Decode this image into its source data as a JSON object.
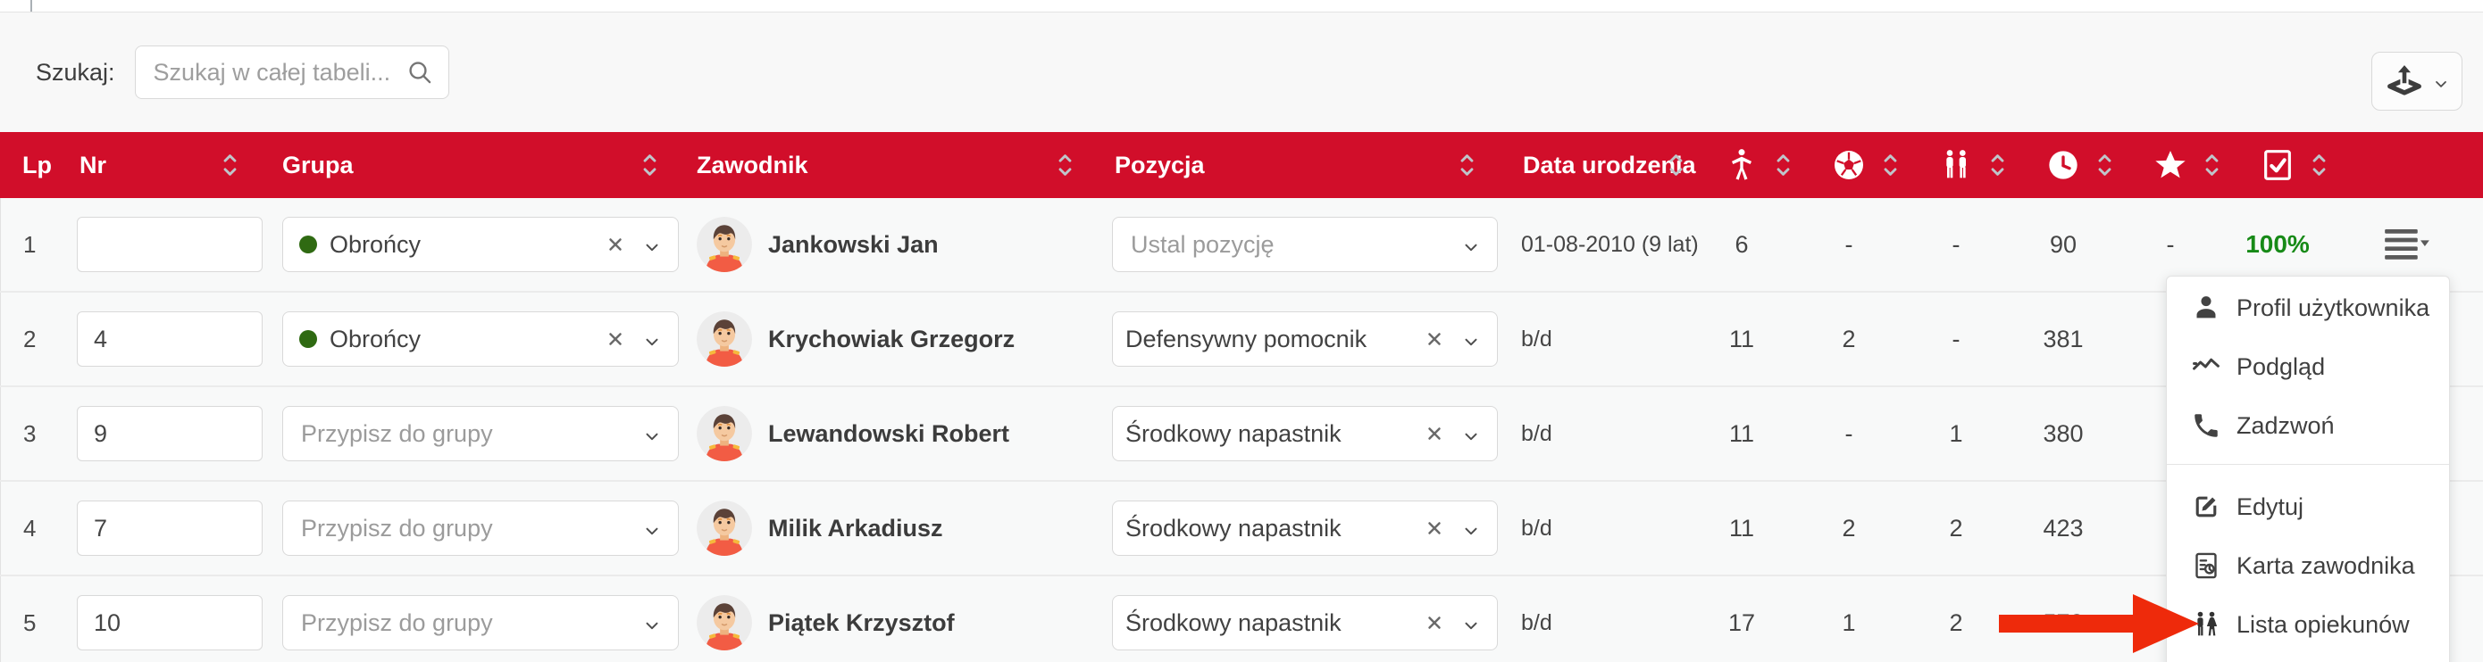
{
  "search": {
    "label": "Szukaj:",
    "placeholder": "Szukaj w całej tabeli...",
    "icon": "search-icon"
  },
  "export": {
    "icon": "export-icon",
    "chevron_icon": "chevron-down-icon"
  },
  "table": {
    "group_placeholder": "Przypisz do grupy",
    "position_placeholder": "Ustal pozycję",
    "columns": [
      {
        "id": "lp",
        "label": "Lp",
        "sortable": false
      },
      {
        "id": "nr",
        "label": "Nr",
        "sortable": true
      },
      {
        "id": "group",
        "label": "Grupa",
        "sortable": true
      },
      {
        "id": "player",
        "label": "Zawodnik",
        "sortable": true
      },
      {
        "id": "position",
        "label": "Pozycja",
        "sortable": true
      },
      {
        "id": "birth",
        "label": "Data urodzenia",
        "sortable": true
      },
      {
        "id": "appearances",
        "icon": "player-figure-icon",
        "sortable": true
      },
      {
        "id": "goals",
        "icon": "football-icon",
        "sortable": true
      },
      {
        "id": "assists",
        "icon": "players-pair-icon",
        "sortable": true
      },
      {
        "id": "minutes",
        "icon": "clock-icon",
        "sortable": true
      },
      {
        "id": "rating",
        "icon": "star-icon",
        "sortable": true
      },
      {
        "id": "attendance",
        "icon": "checkbox-checked-icon",
        "sortable": true
      },
      {
        "id": "actions",
        "label": "",
        "sortable": false
      }
    ],
    "rows": [
      {
        "lp": "1",
        "nr": "",
        "group": "Obrońcy",
        "player": "Jankowski Jan",
        "position": "",
        "birth": "01-08-2010 (9 lat)",
        "appearances": "6",
        "goals": "-",
        "assists": "-",
        "minutes": "90",
        "rating": "-",
        "attendance": "100%"
      },
      {
        "lp": "2",
        "nr": "4",
        "group": "Obrońcy",
        "player": "Krychowiak Grzegorz",
        "position": "Defensywny pomocnik",
        "birth": "b/d",
        "appearances": "11",
        "goals": "2",
        "assists": "-",
        "minutes": "381",
        "rating": "",
        "attendance": ""
      },
      {
        "lp": "3",
        "nr": "9",
        "group": "",
        "player": "Lewandowski Robert",
        "position": "Środkowy napastnik",
        "birth": "b/d",
        "appearances": "11",
        "goals": "-",
        "assists": "1",
        "minutes": "380",
        "rating": "",
        "attendance": ""
      },
      {
        "lp": "4",
        "nr": "7",
        "group": "",
        "player": "Milik Arkadiusz",
        "position": "Środkowy napastnik",
        "birth": "b/d",
        "appearances": "11",
        "goals": "2",
        "assists": "2",
        "minutes": "423",
        "rating": "",
        "attendance": ""
      },
      {
        "lp": "5",
        "nr": "10",
        "group": "",
        "player": "Piątek Krzysztof",
        "position": "Środkowy napastnik",
        "birth": "b/d",
        "appearances": "17",
        "goals": "1",
        "assists": "2",
        "minutes": "572",
        "rating": "",
        "attendance": ""
      }
    ]
  },
  "context_menu": {
    "sections": [
      [
        {
          "icon": "user-icon",
          "label": "Profil użytkownika"
        },
        {
          "icon": "activity-chart-icon",
          "label": "Podgląd"
        },
        {
          "icon": "phone-icon",
          "label": "Zadzwoń"
        }
      ],
      [
        {
          "icon": "edit-icon",
          "label": "Edytuj"
        },
        {
          "icon": "player-card-icon",
          "label": "Karta zawodnika"
        },
        {
          "icon": "guardians-icon",
          "label": "Lista opiekunów"
        }
      ]
    ]
  },
  "annotation": {
    "shape": "red-arrow",
    "points_to": "Lista opiekunów"
  },
  "colors": {
    "header": "#d10e2a",
    "accent_green": "#178a17",
    "group_dot": "#2f6a12",
    "arrow": "#ee2a0b"
  }
}
